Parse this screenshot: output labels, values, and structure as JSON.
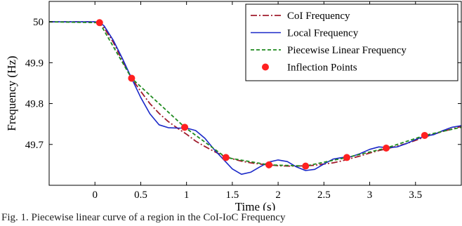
{
  "caption": "Fig. 1. Piecewise linear curve of a region  in the CoI-IoC Frequency",
  "chart_data": {
    "type": "line",
    "xlabel": "Time (s)",
    "ylabel": "Frequency (Hz)",
    "xlim": [
      -0.5,
      4.0
    ],
    "ylim": [
      49.6,
      50.05
    ],
    "xticks": [
      0,
      0.5,
      1,
      1.5,
      2,
      2.5,
      3,
      3.5
    ],
    "xtick_labels": [
      "0",
      "0.5",
      "1",
      "1.5",
      "2",
      "2.5",
      "3",
      "3.5"
    ],
    "yticks": [
      49.7,
      49.8,
      49.9,
      50
    ],
    "ytick_labels": [
      "49.7",
      "49.8",
      "49.9",
      "50"
    ],
    "grid": false,
    "legend_position": "top-right",
    "series": [
      {
        "name": "CoI Frequency",
        "style": "dash-dot",
        "color": "#a01c2c",
        "x": [
          -0.5,
          0.0,
          0.05,
          0.1,
          0.2,
          0.3,
          0.4,
          0.5,
          0.6,
          0.7,
          0.8,
          0.9,
          1.0,
          1.1,
          1.2,
          1.3,
          1.4,
          1.5,
          1.6,
          1.7,
          1.8,
          1.9,
          2.0,
          2.1,
          2.2,
          2.3,
          2.4,
          2.5,
          2.6,
          2.7,
          2.8,
          2.9,
          3.0,
          3.1,
          3.2,
          3.3,
          3.4,
          3.5,
          3.6,
          3.7,
          3.8,
          3.9,
          4.0
        ],
        "y": [
          50.0,
          50.0,
          49.998,
          49.985,
          49.95,
          49.905,
          49.862,
          49.83,
          49.8,
          49.776,
          49.756,
          49.74,
          49.725,
          49.708,
          49.695,
          49.683,
          49.672,
          49.665,
          49.659,
          49.655,
          49.652,
          49.65,
          49.648,
          49.647,
          49.647,
          49.648,
          49.649,
          49.652,
          49.655,
          49.66,
          49.666,
          49.672,
          49.679,
          49.685,
          49.69,
          49.696,
          49.702,
          49.71,
          49.718,
          49.725,
          49.732,
          49.738,
          49.744
        ]
      },
      {
        "name": "Local Frequency",
        "style": "solid",
        "color": "#1a28c8",
        "x": [
          -0.5,
          0.0,
          0.05,
          0.1,
          0.2,
          0.3,
          0.4,
          0.5,
          0.6,
          0.7,
          0.8,
          0.9,
          1.0,
          1.1,
          1.2,
          1.3,
          1.4,
          1.5,
          1.6,
          1.7,
          1.8,
          1.9,
          2.0,
          2.1,
          2.2,
          2.3,
          2.4,
          2.5,
          2.6,
          2.7,
          2.8,
          2.9,
          3.0,
          3.1,
          3.2,
          3.3,
          3.4,
          3.5,
          3.6,
          3.7,
          3.8,
          3.9,
          4.0
        ],
        "y": [
          50.0,
          50.0,
          49.999,
          49.99,
          49.955,
          49.91,
          49.862,
          49.815,
          49.775,
          49.748,
          49.741,
          49.74,
          49.74,
          49.734,
          49.715,
          49.688,
          49.664,
          49.64,
          49.627,
          49.632,
          49.645,
          49.657,
          49.662,
          49.658,
          49.645,
          49.636,
          49.639,
          49.652,
          49.664,
          49.668,
          49.67,
          49.678,
          49.688,
          49.694,
          49.692,
          49.694,
          49.702,
          49.712,
          49.72,
          49.724,
          49.734,
          49.742,
          49.746
        ]
      },
      {
        "name": "Piecewise Linear Frequency",
        "style": "dashed",
        "color": "#1f8a1f",
        "x": [
          -0.5,
          0.05,
          0.4,
          0.98,
          1.43,
          1.9,
          2.3,
          2.75,
          3.18,
          3.6,
          4.0
        ],
        "y": [
          50.0,
          49.998,
          49.862,
          49.742,
          49.668,
          49.65,
          49.647,
          49.668,
          49.691,
          49.722,
          49.742
        ]
      },
      {
        "name": "Inflection Points",
        "style": "markers",
        "color": "#ff2020",
        "x": [
          0.05,
          0.4,
          0.98,
          1.43,
          1.9,
          2.3,
          2.75,
          3.18,
          3.6
        ],
        "y": [
          49.998,
          49.862,
          49.742,
          49.668,
          49.65,
          49.647,
          49.668,
          49.691,
          49.722
        ]
      }
    ]
  }
}
